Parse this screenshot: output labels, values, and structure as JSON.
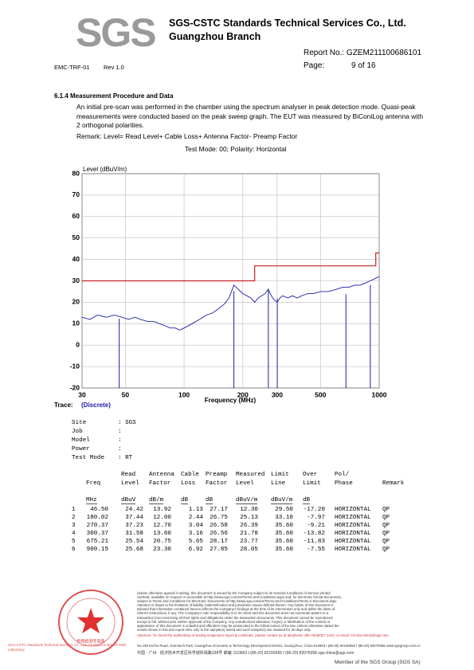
{
  "header": {
    "logo": "SGS",
    "company": "SGS-CSTC Standards Technical Services Co., Ltd.",
    "branch": "Guangzhou Branch",
    "form": "EMC-TRF-01",
    "rev": "Rev 1.0",
    "report_no": "Report No.: GZEM211100686101",
    "page_label": "Page:",
    "page_num": "9 of 16"
  },
  "section": {
    "title": "6.1.4  Measurement  Procedure and Data",
    "paragraph": "An initial pre-scan was performed in the chamber using the spectrum analyser in peak detection mode. Quasi-peak measurements were conducted based on the peak sweep graph. The EUT was measured by BiConiLog antenna with 2 orthogonal polarities.",
    "remark": "Remark: Level= Read Level+ Cable Loss+ Antenna Factor- Preamp Factor",
    "test_mode": "Test Mode: 00; Polarity: Horizontal"
  },
  "chart_data": {
    "type": "line",
    "y_label": "Level (dBuV/m)",
    "x_label": "Frequency (MHz)",
    "x_scale": "log",
    "xlim": [
      30,
      1000
    ],
    "ylim": [
      -20,
      80
    ],
    "xticks": [
      30,
      50,
      100,
      200,
      300,
      500,
      1000
    ],
    "yticks": [
      -20,
      -10,
      0,
      10,
      20,
      30,
      40,
      50,
      60,
      70,
      80
    ],
    "grid": true,
    "series": [
      {
        "color": "#1c1ca8",
        "x": [
          30,
          33,
          36,
          40,
          44,
          48,
          52,
          56,
          60,
          65,
          70,
          75,
          80,
          85,
          90,
          95,
          100,
          110,
          120,
          130,
          140,
          150,
          160,
          170,
          175,
          180,
          185,
          190,
          200,
          210,
          220,
          230,
          240,
          250,
          260,
          270,
          280,
          290,
          300,
          310,
          320,
          340,
          360,
          380,
          400,
          430,
          460,
          500,
          550,
          600,
          650,
          700,
          750,
          800,
          850,
          900,
          950,
          1000
        ],
        "values": [
          13,
          12,
          14,
          13,
          14,
          13,
          12,
          13,
          12,
          11,
          11,
          10,
          9,
          8,
          8,
          7,
          8,
          10,
          12,
          14,
          15,
          17,
          19,
          22,
          25,
          28,
          27,
          26,
          24,
          23,
          22,
          20,
          22,
          23,
          24,
          26,
          23,
          21,
          20,
          22,
          23,
          22,
          23,
          22,
          23,
          24,
          24,
          25,
          25,
          26,
          27,
          27,
          28,
          28,
          29,
          30,
          31,
          32
        ]
      },
      {
        "color": "#cc2222",
        "x": [
          30,
          230,
          230,
          960,
          960,
          1000
        ],
        "values": [
          30,
          30,
          37,
          37,
          43,
          43
        ]
      }
    ],
    "markers": {
      "color": "#1c1ca8",
      "x": [
        46.5,
        180.02,
        270.37,
        300.37,
        675.21,
        900.15
      ],
      "values": [
        12.3,
        25.13,
        26.39,
        21.78,
        23.77,
        28.05
      ]
    }
  },
  "trace": {
    "label": "Trace:",
    "value": "(Discrete)"
  },
  "info": [
    {
      "label": "Site",
      "value": ": SGS"
    },
    {
      "label": "Job",
      "value": ":"
    },
    {
      "label": "Model",
      "value": ":"
    },
    {
      "label": "Power",
      "value": ":"
    },
    {
      "label": "Test Mode",
      "value": ": RT"
    }
  ],
  "table": {
    "columns": [
      {},
      {
        "main": "Freq",
        "unit": "MHz"
      },
      {
        "top": "Read",
        "main": "Level",
        "unit": "dBuV"
      },
      {
        "top": "Antenna",
        "main": "Factor",
        "unit": "dB/m"
      },
      {
        "top": "Cable",
        "main": "Loss",
        "unit": "dB"
      },
      {
        "top": "Preamp",
        "main": "Factor",
        "unit": "dB"
      },
      {
        "top": "Measured",
        "main": "Level",
        "unit": "dBuV/m"
      },
      {
        "top": "Limit",
        "main": "Line",
        "unit": "dBuV/m"
      },
      {
        "top": "Over",
        "main": "Limit",
        "unit": "dB"
      },
      {
        "top": "Pol/",
        "main": "Phase"
      },
      {
        "main": "Remark"
      }
    ],
    "rows": [
      [
        "1",
        "46.50",
        "24.42",
        "13.92",
        "1.13",
        "27.17",
        "12.30",
        "29.50",
        "-17.20",
        "HORIZONTAL",
        "QP"
      ],
      [
        "2",
        "180.02",
        "37.44",
        "12.00",
        "2.44",
        "26.75",
        "25.13",
        "33.10",
        "-7.97",
        "HORIZONTAL",
        "QP"
      ],
      [
        "3",
        "270.37",
        "37.23",
        "12.70",
        "3.04",
        "26.58",
        "26.39",
        "35.60",
        "-9.21",
        "HORIZONTAL",
        "QP"
      ],
      [
        "4",
        "300.37",
        "31.58",
        "13.60",
        "3.16",
        "26.56",
        "21.78",
        "35.60",
        "-13.82",
        "HORIZONTAL",
        "QP"
      ],
      [
        "5",
        "675.21",
        "25.54",
        "20.75",
        "5.65",
        "28.17",
        "23.77",
        "35.60",
        "-11.83",
        "HORIZONTAL",
        "QP"
      ],
      [
        "6",
        "900.15",
        "25.68",
        "23.30",
        "6.92",
        "27.85",
        "28.05",
        "35.60",
        "-7.55",
        "HORIZONTAL",
        "QP"
      ]
    ]
  },
  "footer": {
    "disclaimer": [
      "Unless otherwise agreed in writing, this document is issued by the Company subject to its General Conditions of Service printed",
      "overleaf, available on request or accessible at http://www.sgs.com/en/Terms-and-Conditions.aspx and, for electronic format documents,",
      "subject to Terms and Conditions for Electronic Documents at http://www.sgs.com/en/Terms-and-Conditions/Terms-e-Document.aspx.",
      "Attention is drawn to the limitation of liability, indemnification and jurisdiction issues defined therein. Any holder of this document is",
      "advised that information contained hereon reflects the Company's findings at the time of its intervention only and within the limits of",
      "Client's instructions, if any. The Company's sole responsibility is to its Client and this document does not exonerate parties to a",
      "transaction from exercising all their rights and obligations under the transaction documents. This document cannot be reproduced",
      "except in full, without prior written approval of the Company. Any unauthorized alteration, forgery or falsification of the content or",
      "appearance of this document is unlawful and offenders may be prosecuted to the fullest extent of the law. Unless otherwise stated the",
      "results shown in this test report refer only to the sample(s) tested and such sample(s) are retained for 30 days only."
    ],
    "attention": "Attention: To check the authenticity of testing /inspection report & certificate, please contact us at telephone: (86-755)8307 1443, or email: CN.Doccheck@sgs.com",
    "address_en": "No.198 Kezhu Road, Scientech Park, Guangzhou Economic & Technology Development District, Guangzhou, China  510663   t (86-20) 82155555   f (86-20) 82075058   www.sgsgroup.com.cn",
    "address_cn": "中国 · 广州 · 经济技术开发区科学城科珠路198号          邮编: 510663   t (86-20) 82155555   f (86-20) 82075058   sgs.china@sgs.com",
    "stamp_text": "SGS-CSTC Standards Technical Services Co., Ltd. Guangzhou Branch EMC Laboratory",
    "stamp_inner": "检验检测专用章",
    "member": "Member of the SGS Group (SGS SA)"
  }
}
